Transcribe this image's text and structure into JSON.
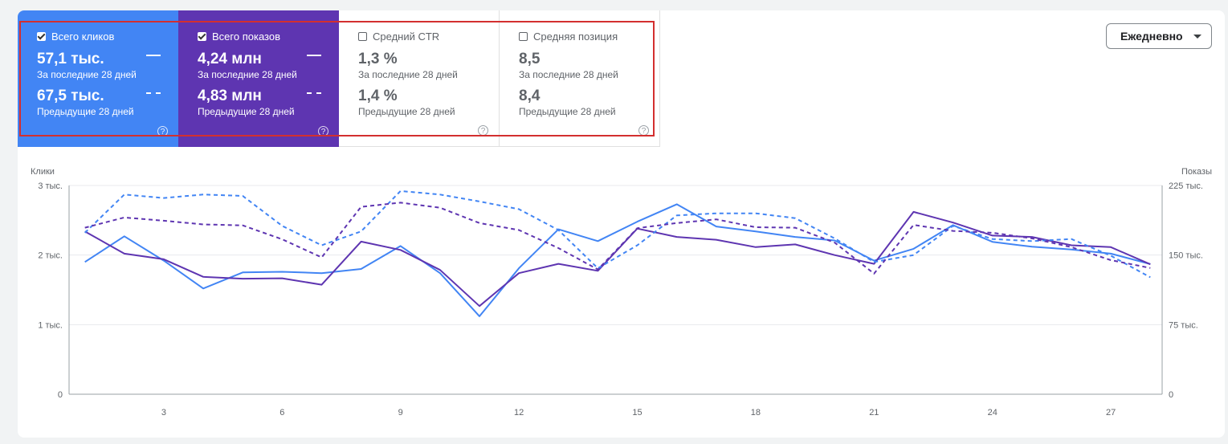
{
  "metrics": {
    "clicks": {
      "label": "Всего кликов",
      "checked": true,
      "current": "57,1 тыс.",
      "current_caption": "За последние 28 дней",
      "previous": "67,5 тыс.",
      "previous_caption": "Предыдущие 28 дней",
      "color": "#4285f4"
    },
    "impressions": {
      "label": "Всего показов",
      "checked": true,
      "current": "4,24 млн",
      "current_caption": "За последние 28 дней",
      "previous": "4,83 млн",
      "previous_caption": "Предыдущие 28 дней",
      "color": "#5e35b1"
    },
    "ctr": {
      "label": "Средний CTR",
      "checked": false,
      "current": "1,3 %",
      "current_caption": "За последние 28 дней",
      "previous": "1,4 %",
      "previous_caption": "Предыдущие 28 дней"
    },
    "position": {
      "label": "Средняя позиция",
      "checked": false,
      "current": "8,5",
      "current_caption": "За последние 28 дней",
      "previous": "8,4",
      "previous_caption": "Предыдущие 28 дней"
    }
  },
  "help_glyph": "?",
  "dropdown": {
    "value": "Ежедневно",
    "icon": "chevron-down-icon"
  },
  "chart_data": {
    "type": "line",
    "ylabel": "Клики",
    "y2label": "Показы",
    "ylim": [
      0,
      3000
    ],
    "y2lim": [
      0,
      225000
    ],
    "yticks": [
      "3 тыс.",
      "2 тыс.",
      "1 тыс.",
      "0"
    ],
    "y2ticks": [
      "225 тыс.",
      "150 тыс.",
      "75 тыс.",
      "0"
    ],
    "x": [
      1,
      2,
      3,
      4,
      5,
      6,
      7,
      8,
      9,
      10,
      11,
      12,
      13,
      14,
      15,
      16,
      17,
      18,
      19,
      20,
      21,
      22,
      23,
      24,
      25,
      26,
      27,
      28
    ],
    "xticks": [
      "3",
      "6",
      "9",
      "12",
      "15",
      "18",
      "21",
      "24",
      "27"
    ],
    "grid": true,
    "series": [
      {
        "name": "Всего кликов",
        "axis": "left",
        "style": "solid",
        "color": "#4285f4",
        "values": [
          1900,
          2270,
          1920,
          1520,
          1750,
          1760,
          1740,
          1800,
          2130,
          1740,
          1120,
          1810,
          2370,
          2200,
          2480,
          2730,
          2410,
          2340,
          2260,
          2210,
          1920,
          2090,
          2430,
          2190,
          2120,
          2080,
          2020,
          1870
        ]
      },
      {
        "name": "Всего показов",
        "axis": "right",
        "style": "solid",
        "color": "#5e35b1",
        "values": [
          175500,
          151500,
          145500,
          126500,
          124500,
          125000,
          118000,
          164500,
          155500,
          134000,
          95000,
          130500,
          140500,
          133000,
          178500,
          169500,
          166500,
          158500,
          161500,
          150000,
          140500,
          196500,
          185000,
          171000,
          169500,
          160500,
          158500,
          140000
        ]
      },
      {
        "name": "Всего кликов (предыдущие 28 дней)",
        "axis": "left",
        "style": "dashed",
        "color": "#4285f4",
        "values": [
          2320,
          2870,
          2820,
          2870,
          2850,
          2420,
          2140,
          2340,
          2920,
          2870,
          2770,
          2660,
          2360,
          1810,
          2140,
          2570,
          2600,
          2600,
          2530,
          2240,
          1900,
          2000,
          2420,
          2230,
          2200,
          2230,
          1990,
          1680
        ]
      },
      {
        "name": "Всего показов (предыдущие 28 дней)",
        "axis": "right",
        "style": "dashed",
        "color": "#5e35b1",
        "values": [
          179500,
          190500,
          187000,
          183000,
          182000,
          167000,
          147500,
          202000,
          206500,
          201000,
          184500,
          177000,
          157500,
          134500,
          179000,
          184500,
          188500,
          180000,
          179500,
          163500,
          130000,
          182500,
          176000,
          174000,
          168000,
          158500,
          144500,
          136000
        ]
      }
    ]
  }
}
